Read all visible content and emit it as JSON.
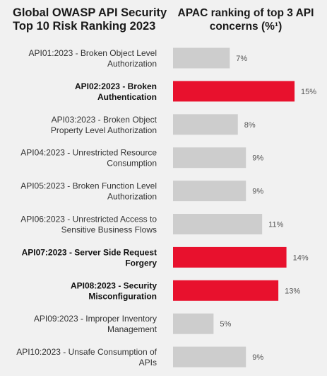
{
  "title_left": "Global OWASP API Security Top 10 Risk Ranking 2023",
  "title_right": "APAC ranking of top 3 API concerns (%¹)",
  "colors": {
    "highlight": "#e8112d",
    "normal": "#cdcdcd",
    "background": "#f1f1f1"
  },
  "chart_data": {
    "type": "bar",
    "orientation": "horizontal",
    "categories": [
      "API01:2023 - Broken Object Level Authorization",
      "API02:2023 - Broken Authentication",
      "API03:2023 - Broken Object Property Level Authorization",
      "API04:2023 - Unrestricted Resource Consumption",
      "API05:2023 - Broken Function Level Authorization",
      "API06:2023 - Unrestricted Access to Sensitive Business Flows",
      "API07:2023 - Server Side Request Forgery",
      "API08:2023 - Security Misconfiguration",
      "API09:2023 - Improper Inventory Management",
      "API10:2023 - Unsafe Consumption of APIs"
    ],
    "label_lines": [
      [
        "API01:2023 - Broken Object Level",
        "Authorization"
      ],
      [
        "API02:2023 - Broken",
        "Authentication"
      ],
      [
        "API03:2023 - Broken Object",
        "Property Level Authorization"
      ],
      [
        "API04:2023 - Unrestricted Resource",
        "Consumption"
      ],
      [
        "API05:2023 - Broken Function Level",
        "Authorization"
      ],
      [
        "API06:2023 - Unrestricted Access to",
        "Sensitive Business Flows"
      ],
      [
        "API07:2023 - Server Side Request",
        "Forgery"
      ],
      [
        "API08:2023 - Security",
        "Misconfiguration"
      ],
      [
        "API09:2023 - Improper Inventory",
        "Management"
      ],
      [
        "API10:2023 - Unsafe Consumption of",
        "APIs"
      ]
    ],
    "values": [
      7,
      15,
      8,
      9,
      9,
      11,
      14,
      13,
      5,
      9
    ],
    "value_labels": [
      "7%",
      "15%",
      "8%",
      "9%",
      "9%",
      "11%",
      "14%",
      "13%",
      "5%",
      "9%"
    ],
    "highlighted": [
      false,
      true,
      false,
      false,
      false,
      false,
      true,
      true,
      false,
      false
    ],
    "unit": "%"
  }
}
